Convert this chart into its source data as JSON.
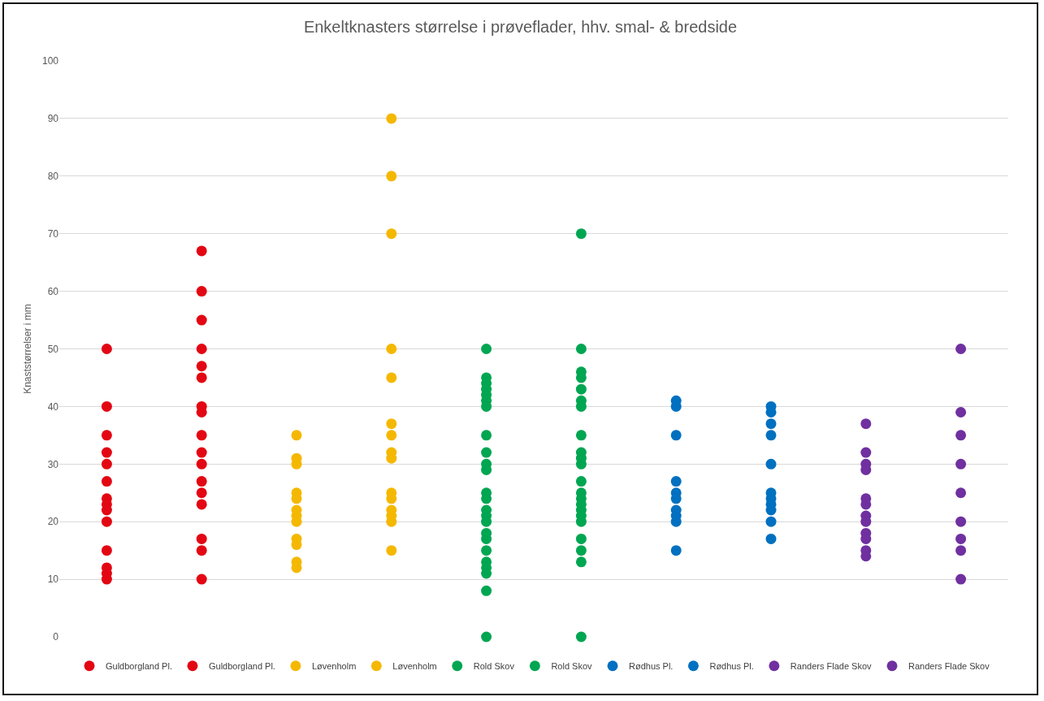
{
  "chart_data": {
    "type": "scatter",
    "title": "Enkeltknasters størrelse i prøveflader, hhv. smal- & bredside",
    "ylabel": "Knaststørrelser i mm",
    "categories": [
      null,
      null,
      null,
      null,
      null,
      null,
      null,
      null,
      null,
      null
    ],
    "ylim": [
      0,
      100
    ],
    "yticks": [
      0,
      10,
      20,
      30,
      40,
      50,
      60,
      70,
      80,
      90,
      100
    ],
    "grid": "y",
    "legend": "bottom",
    "marker": "circle",
    "series": [
      {
        "name": "Guldborgland Pl.",
        "color": "#e30613",
        "values": [
          50,
          null,
          null,
          null,
          null,
          null,
          null,
          null,
          null,
          null
        ]
      },
      {
        "name": "Guldborgland Pl.",
        "color": "#e30613",
        "values": [
          null,
          67,
          null,
          null,
          null,
          null,
          null,
          null,
          null,
          null
        ]
      },
      {
        "name": "Løvenholm",
        "color": "#f5b800",
        "values": [
          null,
          null,
          35,
          null,
          null,
          null,
          null,
          null,
          null,
          null
        ]
      },
      {
        "name": "Løvenholm",
        "color": "#f5b800",
        "values": [
          null,
          null,
          null,
          90,
          null,
          null,
          null,
          null,
          null,
          null
        ]
      },
      {
        "name": "Rold Skov",
        "color": "#00a651",
        "values": [
          null,
          null,
          null,
          null,
          50,
          null,
          null,
          null,
          null,
          null
        ]
      },
      {
        "name": "Rold Skov",
        "color": "#00a651",
        "values": [
          null,
          null,
          null,
          null,
          null,
          70,
          null,
          null,
          null,
          null
        ]
      },
      {
        "name": "Rødhus Pl.",
        "color": "#0070c0",
        "values": [
          null,
          null,
          null,
          null,
          null,
          null,
          41,
          null,
          null,
          null
        ]
      },
      {
        "name": "Rødhus Pl.",
        "color": "#0070c0",
        "values": [
          null,
          null,
          null,
          null,
          null,
          null,
          null,
          40,
          null,
          null
        ]
      },
      {
        "name": "Randers Flade Skov",
        "color": "#7030a0",
        "values": [
          null,
          null,
          null,
          null,
          null,
          null,
          null,
          null,
          37,
          null
        ]
      },
      {
        "name": "Randers Flade Skov",
        "color": "#7030a0",
        "values": [
          null,
          null,
          null,
          null,
          null,
          null,
          null,
          null,
          null,
          50
        ]
      },
      {
        "colors": [
          "#e30613",
          "#e30613",
          "#f5b800",
          "#f5b800",
          "#00a651",
          "#00a651",
          "#0070c0",
          "#0070c0",
          "#7030a0",
          "#7030a0"
        ],
        "values": [
          40,
          60,
          31,
          80,
          45,
          50,
          40,
          39,
          32,
          39
        ]
      },
      {
        "colors": [
          "#e30613",
          "#e30613",
          "#f5b800",
          "#f5b800",
          "#00a651",
          "#00a651",
          "#0070c0",
          "#0070c0",
          "#7030a0",
          "#7030a0"
        ],
        "values": [
          35,
          55,
          30,
          70,
          44,
          46,
          35,
          37,
          30,
          35
        ]
      },
      {
        "colors": [
          "#e30613",
          "#e30613",
          "#f5b800",
          "#f5b800",
          "#00a651",
          "#00a651",
          "#0070c0",
          "#0070c0",
          "#7030a0",
          "#7030a0"
        ],
        "values": [
          32,
          50,
          25,
          50,
          43,
          45,
          27,
          35,
          29,
          30
        ]
      },
      {
        "colors": [
          "#e30613",
          "#e30613",
          "#f5b800",
          "#f5b800",
          "#00a651",
          "#00a651",
          "#0070c0",
          "#0070c0",
          "#7030a0",
          "#7030a0"
        ],
        "values": [
          30,
          47,
          24,
          45,
          42,
          43,
          25,
          30,
          24,
          25
        ]
      },
      {
        "colors": [
          "#e30613",
          "#e30613",
          "#f5b800",
          "#f5b800",
          "#00a651",
          "#00a651",
          "#0070c0",
          "#0070c0",
          "#7030a0",
          "#7030a0"
        ],
        "values": [
          27,
          45,
          22,
          37,
          41,
          41,
          24,
          25,
          23,
          20
        ]
      },
      {
        "colors": [
          "#e30613",
          "#e30613",
          "#f5b800",
          "#f5b800",
          "#00a651",
          "#00a651",
          "#0070c0",
          "#0070c0",
          "#7030a0",
          "#7030a0"
        ],
        "values": [
          24,
          40,
          21,
          35,
          40,
          40,
          22,
          24,
          21,
          17
        ]
      },
      {
        "colors": [
          "#e30613",
          "#e30613",
          "#f5b800",
          "#f5b800",
          "#00a651",
          "#00a651",
          "#0070c0",
          "#0070c0",
          "#7030a0",
          "#7030a0"
        ],
        "values": [
          23,
          39,
          20,
          32,
          35,
          35,
          21,
          23,
          20,
          15
        ]
      },
      {
        "colors": [
          "#e30613",
          "#e30613",
          "#f5b800",
          "#f5b800",
          "#00a651",
          "#00a651",
          "#0070c0",
          "#0070c0",
          "#7030a0",
          "#7030a0"
        ],
        "values": [
          22,
          35,
          17,
          31,
          32,
          32,
          20,
          22,
          18,
          10
        ]
      },
      {
        "colors": [
          "#e30613",
          "#e30613",
          "#f5b800",
          "#f5b800",
          "#00a651",
          "#00a651",
          "#0070c0",
          "#0070c0",
          "#7030a0",
          "#7030a0"
        ],
        "values": [
          20,
          32,
          16,
          25,
          30,
          31,
          15,
          20,
          17,
          null
        ]
      },
      {
        "colors": [
          "#e30613",
          "#e30613",
          "#f5b800",
          "#f5b800",
          "#00a651",
          "#00a651",
          "#0070c0",
          "#0070c0",
          "#7030a0",
          "#7030a0"
        ],
        "values": [
          15,
          30,
          13,
          24,
          29,
          30,
          null,
          17,
          15,
          null
        ]
      },
      {
        "colors": [
          "#e30613",
          "#e30613",
          "#f5b800",
          "#f5b800",
          "#00a651",
          "#00a651",
          "#0070c0",
          "#0070c0",
          "#7030a0",
          "#7030a0"
        ],
        "values": [
          12,
          27,
          12,
          22,
          25,
          27,
          null,
          null,
          14,
          null
        ]
      },
      {
        "colors": [
          "#e30613",
          "#e30613",
          "#f5b800",
          "#f5b800",
          "#00a651",
          "#00a651",
          "#0070c0",
          "#0070c0",
          "#7030a0",
          "#7030a0"
        ],
        "values": [
          11,
          25,
          null,
          21,
          24,
          25,
          null,
          null,
          null,
          null
        ]
      },
      {
        "colors": [
          "#e30613",
          "#e30613",
          "#f5b800",
          "#f5b800",
          "#00a651",
          "#00a651",
          "#0070c0",
          "#0070c0",
          "#7030a0",
          "#7030a0"
        ],
        "values": [
          10,
          23,
          null,
          20,
          22,
          24,
          null,
          null,
          null,
          null
        ]
      },
      {
        "colors": [
          "#e30613",
          "#e30613",
          "#f5b800",
          "#f5b800",
          "#00a651",
          "#00a651",
          "#0070c0",
          "#0070c0",
          "#7030a0",
          "#7030a0"
        ],
        "values": [
          null,
          17,
          null,
          15,
          21,
          23,
          null,
          null,
          null,
          null
        ]
      },
      {
        "colors": [
          "#e30613",
          "#e30613",
          "#f5b800",
          "#f5b800",
          "#00a651",
          "#00a651",
          "#0070c0",
          "#0070c0",
          "#7030a0",
          "#7030a0"
        ],
        "values": [
          null,
          15,
          null,
          null,
          20,
          22,
          null,
          null,
          null,
          null
        ]
      },
      {
        "colors": [
          "#e30613",
          "#e30613",
          "#f5b800",
          "#f5b800",
          "#00a651",
          "#00a651",
          "#0070c0",
          "#0070c0",
          "#7030a0",
          "#7030a0"
        ],
        "values": [
          null,
          10,
          null,
          null,
          18,
          21,
          null,
          null,
          null,
          null
        ]
      },
      {
        "colors": [
          "#e30613",
          "#e30613",
          "#f5b800",
          "#f5b800",
          "#00a651",
          "#00a651",
          "#0070c0",
          "#0070c0",
          "#7030a0",
          "#7030a0"
        ],
        "values": [
          null,
          null,
          null,
          null,
          17,
          20,
          null,
          null,
          null,
          null
        ]
      },
      {
        "colors": [
          "#e30613",
          "#e30613",
          "#f5b800",
          "#f5b800",
          "#00a651",
          "#00a651",
          "#0070c0",
          "#0070c0",
          "#7030a0",
          "#7030a0"
        ],
        "values": [
          null,
          null,
          null,
          null,
          15,
          17,
          null,
          null,
          null,
          null
        ]
      },
      {
        "colors": [
          "#e30613",
          "#e30613",
          "#f5b800",
          "#f5b800",
          "#00a651",
          "#00a651",
          "#0070c0",
          "#0070c0",
          "#7030a0",
          "#7030a0"
        ],
        "values": [
          null,
          null,
          null,
          null,
          13,
          15,
          null,
          null,
          null,
          null
        ]
      },
      {
        "colors": [
          "#e30613",
          "#e30613",
          "#f5b800",
          "#f5b800",
          "#00a651",
          "#00a651",
          "#0070c0",
          "#0070c0",
          "#7030a0",
          "#7030a0"
        ],
        "values": [
          null,
          null,
          null,
          null,
          12,
          13,
          null,
          null,
          null,
          null
        ]
      },
      {
        "colors": [
          "#e30613",
          "#e30613",
          "#f5b800",
          "#f5b800",
          "#00a651",
          "#00a651",
          "#0070c0",
          "#0070c0",
          "#7030a0",
          "#7030a0"
        ],
        "values": [
          null,
          null,
          null,
          null,
          11,
          0,
          null,
          null,
          null,
          null
        ]
      },
      {
        "colors": [
          "#e30613",
          "#e30613",
          "#f5b800",
          "#f5b800",
          "#00a651",
          "#00a651",
          "#0070c0",
          "#0070c0",
          "#7030a0",
          "#7030a0"
        ],
        "values": [
          null,
          null,
          null,
          null,
          8,
          null,
          null,
          null,
          null,
          null
        ]
      },
      {
        "colors": [
          "#e30613",
          "#e30613",
          "#f5b800",
          "#f5b800",
          "#00a651",
          "#00a651",
          "#0070c0",
          "#0070c0",
          "#7030a0",
          "#7030a0"
        ],
        "values": [
          null,
          null,
          null,
          null,
          0,
          null,
          null,
          null,
          null,
          null
        ]
      }
    ]
  }
}
